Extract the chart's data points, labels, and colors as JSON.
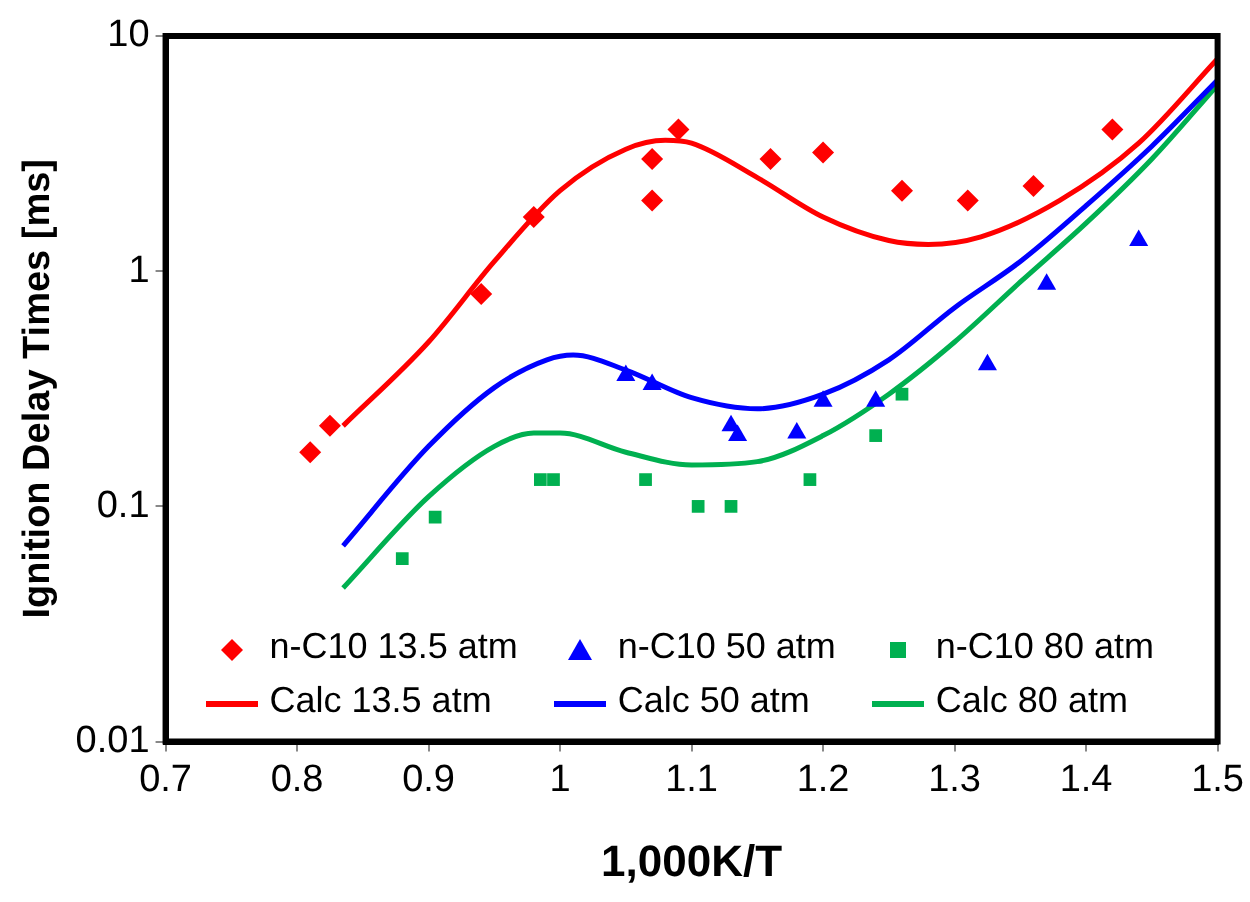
{
  "chart_data": {
    "type": "scatter",
    "xlabel": "1,000K/T",
    "ylabel": "Ignition Delay Times [ms]",
    "log": "y",
    "xlim": [
      0.7,
      1.5
    ],
    "xticks": [
      0.7,
      0.8,
      0.9,
      1,
      1.1,
      1.2,
      1.3,
      1.4,
      1.5
    ],
    "ylim": [
      0.01,
      10
    ],
    "yticks": [
      0.01,
      0.1,
      1,
      10
    ],
    "grid": false,
    "legend": "bottom",
    "series": [
      {
        "name": "n-C10 13.5 atm",
        "marker": "diamond",
        "color": "#ff0000",
        "x": [
          0.81,
          0.825,
          0.94,
          0.98,
          1.07,
          1.07,
          1.09,
          1.16,
          1.2,
          1.26,
          1.31,
          1.36,
          1.42
        ],
        "values": [
          0.17,
          0.22,
          0.8,
          1.7,
          2.0,
          3.0,
          4.0,
          3.0,
          3.2,
          2.2,
          2.0,
          2.3,
          4.0
        ]
      },
      {
        "name": "n-C10 50 atm",
        "marker": "triangle",
        "color": "#0000ff",
        "x": [
          1.05,
          1.07,
          1.13,
          1.135,
          1.18,
          1.2,
          1.24,
          1.325,
          1.37,
          1.44
        ],
        "values": [
          0.36,
          0.33,
          0.22,
          0.2,
          0.205,
          0.28,
          0.28,
          0.4,
          0.88,
          1.35
        ]
      },
      {
        "name": "n-C10 80 atm",
        "marker": "square",
        "color": "#00b050",
        "x": [
          0.88,
          0.905,
          0.985,
          0.995,
          1.065,
          1.105,
          1.13,
          1.19,
          1.24,
          1.26
        ],
        "values": [
          0.06,
          0.09,
          0.13,
          0.13,
          0.13,
          0.1,
          0.1,
          0.13,
          0.2,
          0.3
        ]
      },
      {
        "name": "Calc 13.5 atm",
        "type": "line",
        "marker": "none",
        "color": "#ff0000",
        "x": [
          0.835,
          0.9,
          0.95,
          1.0,
          1.05,
          1.08,
          1.1,
          1.15,
          1.2,
          1.25,
          1.28,
          1.32,
          1.38,
          1.44,
          1.5
        ],
        "values": [
          0.22,
          0.5,
          1.1,
          2.2,
          3.3,
          3.6,
          3.5,
          2.5,
          1.7,
          1.35,
          1.3,
          1.4,
          2.0,
          3.5,
          8
        ]
      },
      {
        "name": "Calc 50 atm",
        "type": "line",
        "marker": "none",
        "color": "#0000ff",
        "x": [
          0.835,
          0.9,
          0.95,
          0.99,
          1.01,
          1.05,
          1.1,
          1.15,
          1.2,
          1.25,
          1.3,
          1.35,
          1.4,
          1.45,
          1.5
        ],
        "values": [
          0.068,
          0.18,
          0.32,
          0.42,
          0.44,
          0.38,
          0.29,
          0.26,
          0.3,
          0.42,
          0.7,
          1.1,
          1.9,
          3.4,
          6.5
        ]
      },
      {
        "name": "Calc 80 atm",
        "type": "line",
        "marker": "none",
        "color": "#00b050",
        "x": [
          0.835,
          0.9,
          0.95,
          0.98,
          1.0,
          1.05,
          1.1,
          1.15,
          1.2,
          1.25,
          1.3,
          1.35,
          1.4,
          1.45,
          1.5
        ],
        "values": [
          0.045,
          0.11,
          0.18,
          0.205,
          0.205,
          0.17,
          0.15,
          0.155,
          0.2,
          0.3,
          0.5,
          0.9,
          1.6,
          3.0,
          6.2
        ]
      }
    ]
  }
}
